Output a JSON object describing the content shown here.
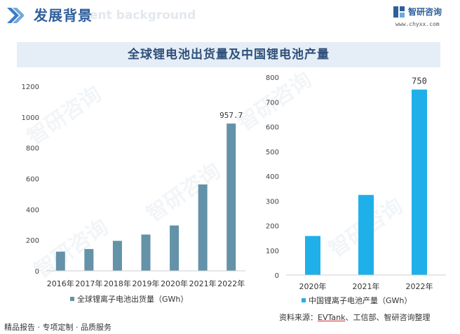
{
  "header": {
    "title": "发展背景",
    "ghost_text": "ent background",
    "brand_name": "智研咨询",
    "brand_url": "www.chyxx.com"
  },
  "chart_title": "全球锂电池出货量及中国锂电池产量",
  "footer": {
    "left": "精品报告 · 专项定制 · 品质服务",
    "source_prefix": "资料来源：",
    "source_underlined": "EVTank",
    "source_rest": "、工信部、智研咨询整理"
  },
  "watermark": "智研咨询",
  "colors": {
    "left_bars": "#6492a8",
    "right_bars": "#1fb0ea",
    "accent": "#2f5f9a"
  },
  "chart_data": [
    {
      "type": "bar",
      "categories": [
        "2016年",
        "2017年",
        "2018年",
        "2019年",
        "2020年",
        "2021年",
        "2022年"
      ],
      "series": [
        {
          "name": "全球锂离子电池出货量（GWh）",
          "values": [
            125,
            142,
            195,
            236,
            295,
            562,
            957.7
          ]
        }
      ],
      "data_labels": [
        {
          "index": 6,
          "text": "957.7"
        }
      ],
      "ylim": [
        0,
        1200
      ],
      "yticks": [
        0,
        200,
        400,
        600,
        800,
        1000,
        1200
      ],
      "legend": "bottom"
    },
    {
      "type": "bar",
      "categories": [
        "2020年",
        "2021年",
        "2022年"
      ],
      "series": [
        {
          "name": "中国锂离子电池产量（GWh）",
          "values": [
            158,
            324,
            750
          ]
        }
      ],
      "data_labels": [
        {
          "index": 2,
          "text": "750"
        }
      ],
      "ylim": [
        0,
        800
      ],
      "yticks": [
        0,
        100,
        200,
        300,
        400,
        500,
        600,
        700,
        800
      ],
      "legend": "bottom"
    }
  ]
}
